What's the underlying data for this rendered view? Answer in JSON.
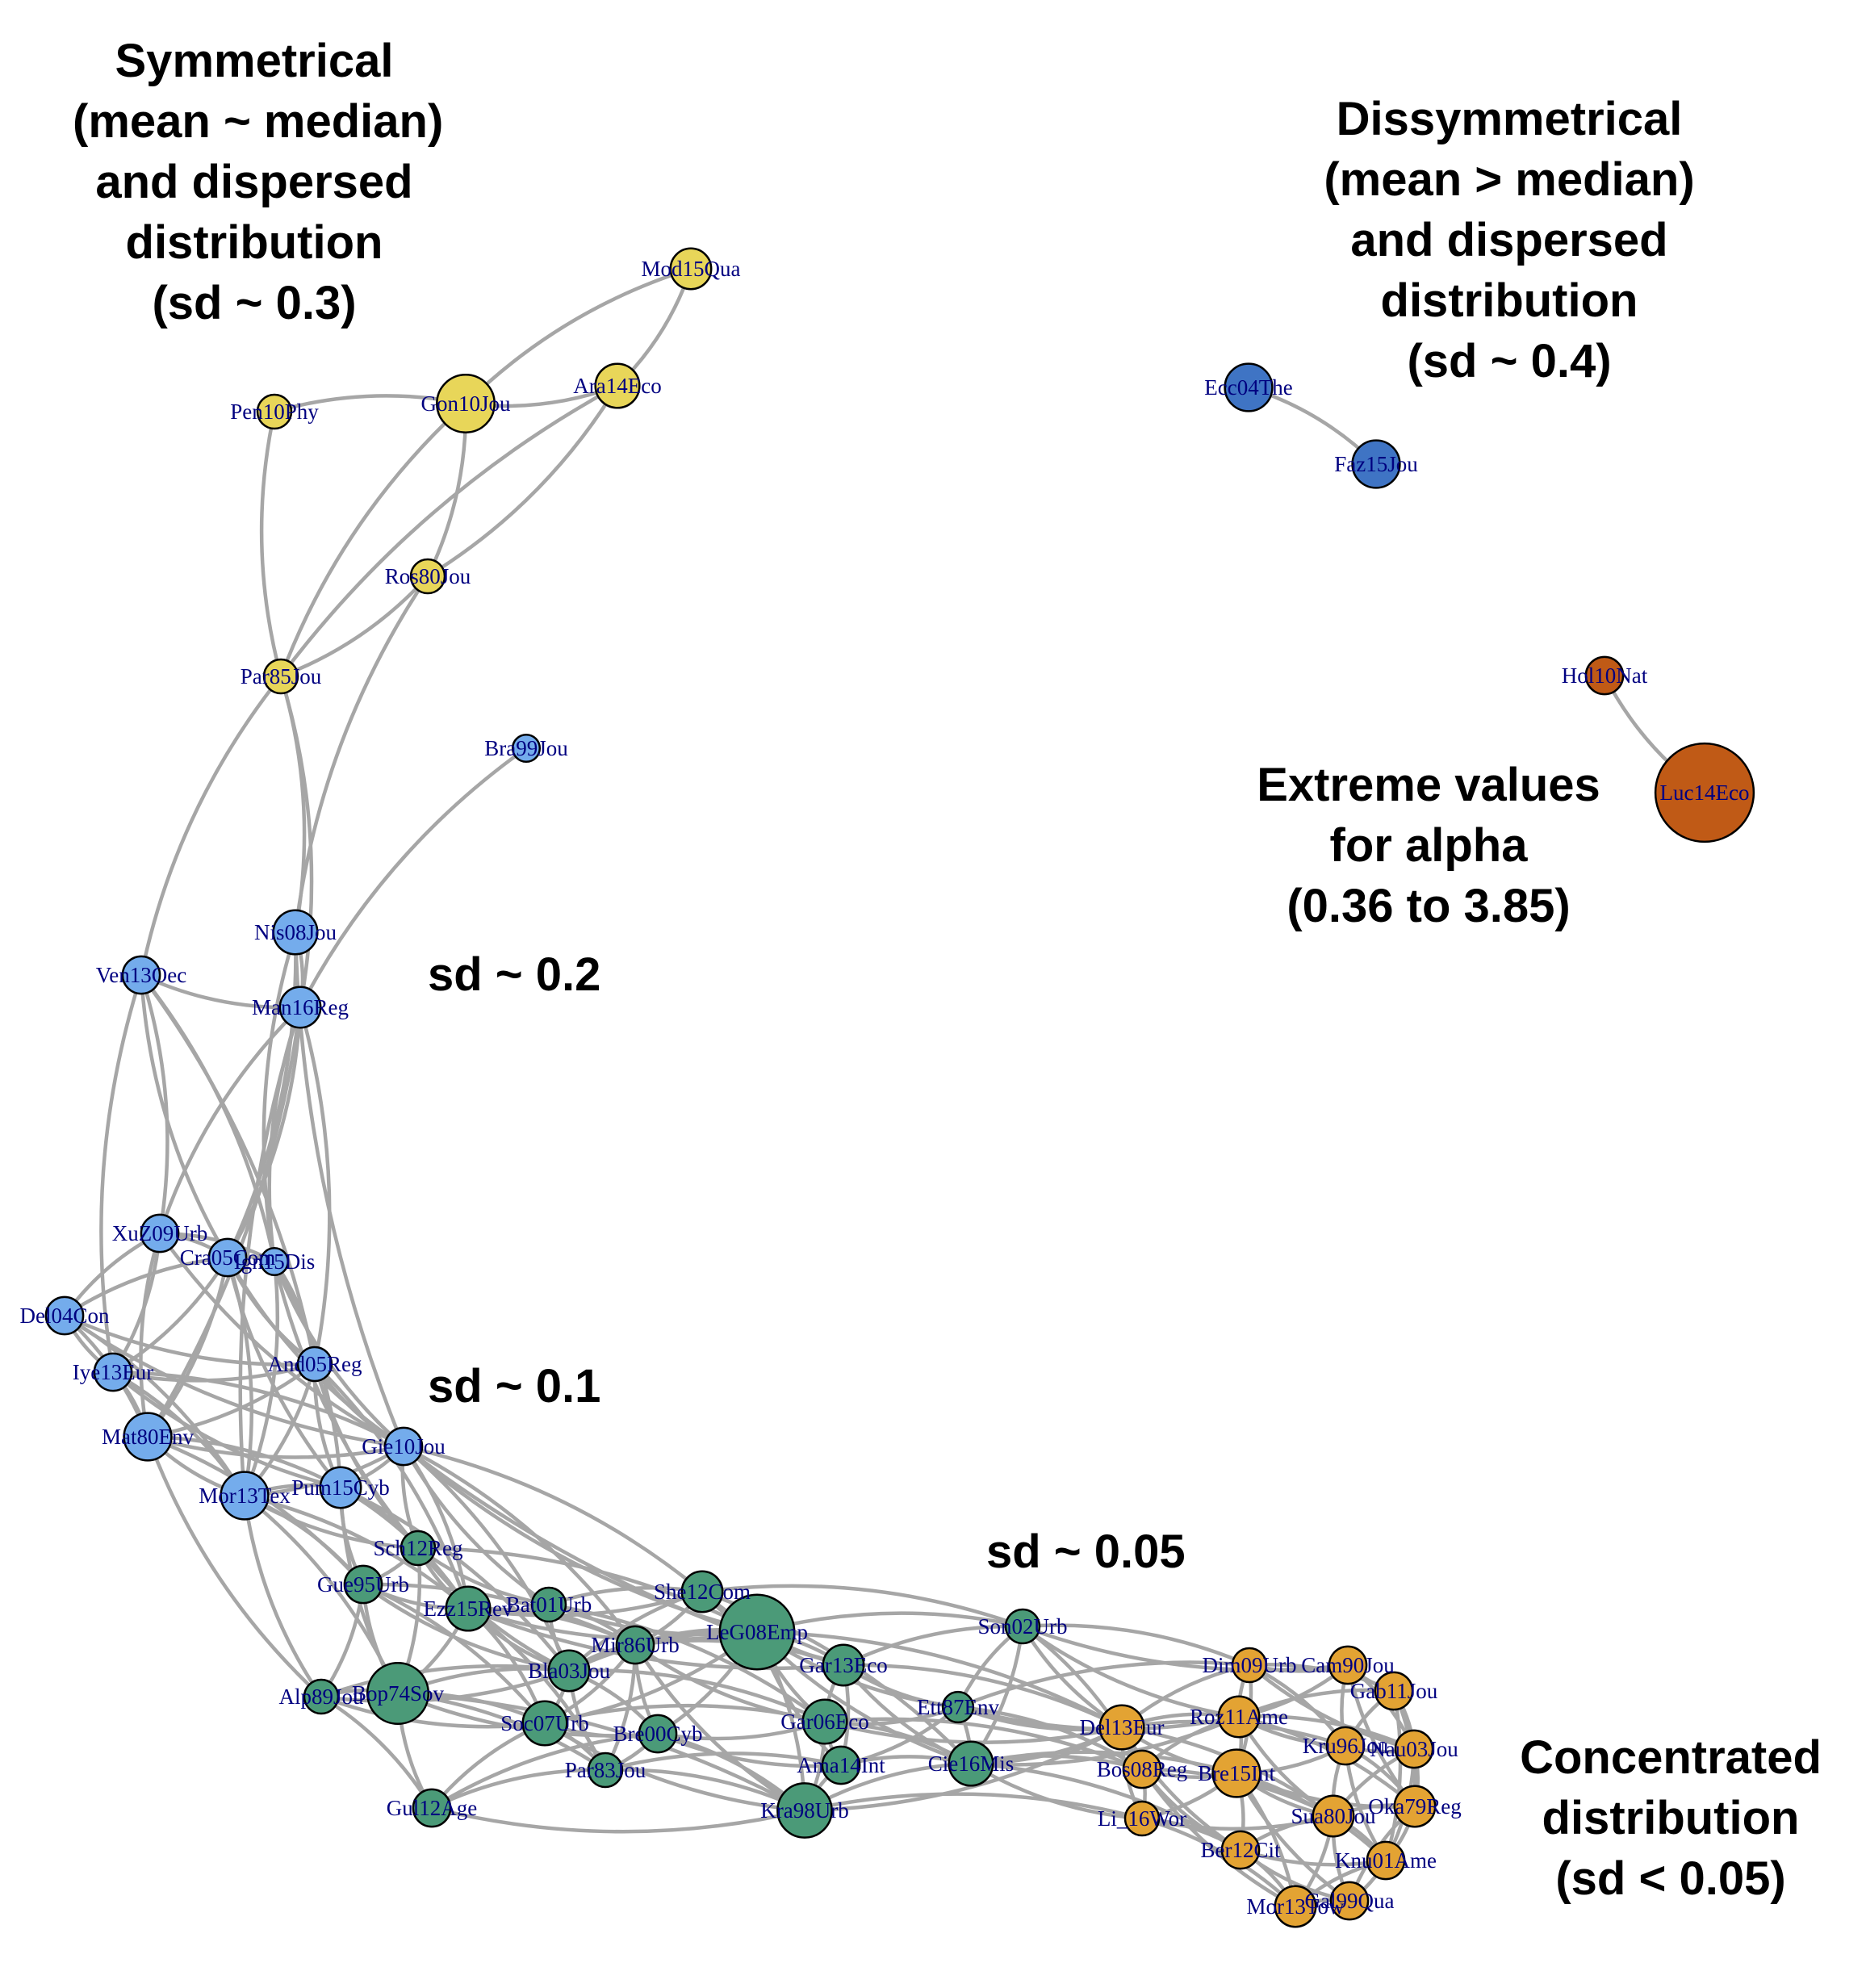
{
  "colors": {
    "edge": "#a6a6a6",
    "label": "#000080",
    "node_stroke": "#000000",
    "groups": {
      "yellow": "#e8d659",
      "blue_dark": "#3f74c4",
      "orange_dark": "#c05a16",
      "blue_light": "#74acec",
      "green": "#4b9a78",
      "orange": "#e3a333"
    }
  },
  "annotations": {
    "symmetrical": [
      "Symmetrical",
      "(mean ~ median)",
      "and dispersed",
      "distribution",
      "(sd ~ 0.3)"
    ],
    "dissymmetrical": [
      "Dissymmetrical",
      "(mean > median)",
      "and dispersed",
      "distribution",
      "(sd ~ 0.4)"
    ],
    "extreme": [
      "Extreme values",
      "for alpha",
      "(0.36 to 3.85)"
    ],
    "sd_02": "sd ~ 0.2",
    "sd_01": "sd ~ 0.1",
    "sd_005": "sd ~ 0.05",
    "concentrated": [
      "Concentrated",
      "distribution",
      "(sd < 0.05)"
    ]
  },
  "nodes": [
    {
      "id": "Mod15Qua",
      "group": "yellow",
      "size": 1.2
    },
    {
      "id": "Ara14Eco",
      "group": "yellow",
      "size": 1.3
    },
    {
      "id": "Gon10Jou",
      "group": "yellow",
      "size": 1.7
    },
    {
      "id": "Pen10Phy",
      "group": "yellow",
      "size": 1.0
    },
    {
      "id": "Ros80Jou",
      "group": "yellow",
      "size": 1.0
    },
    {
      "id": "Par85Jou",
      "group": "yellow",
      "size": 1.0
    },
    {
      "id": "Ecc04The",
      "group": "blue_dark",
      "size": 1.4
    },
    {
      "id": "Faz15Jou",
      "group": "blue_dark",
      "size": 1.4
    },
    {
      "id": "Hol10Nat",
      "group": "orange_dark",
      "size": 1.1
    },
    {
      "id": "Luc14Eco",
      "group": "orange_dark",
      "size": 2.9
    },
    {
      "id": "Bra99Jou",
      "group": "blue_light",
      "size": 0.8
    },
    {
      "id": "Nis08Jou",
      "group": "blue_light",
      "size": 1.3
    },
    {
      "id": "Man16Reg",
      "group": "blue_light",
      "size": 1.2
    },
    {
      "id": "Ven13Oec",
      "group": "blue_light",
      "size": 1.1
    },
    {
      "id": "XuZ09Urb",
      "group": "blue_light",
      "size": 1.1
    },
    {
      "id": "Cra05Com",
      "group": "blue_light",
      "size": 1.1
    },
    {
      "id": "Ign15Dis",
      "group": "blue_light",
      "size": 0.8
    },
    {
      "id": "Del04Con",
      "group": "blue_light",
      "size": 1.1
    },
    {
      "id": "Iye13Eur",
      "group": "blue_light",
      "size": 1.1
    },
    {
      "id": "And05Reg",
      "group": "blue_light",
      "size": 1.0
    },
    {
      "id": "Mat80Env",
      "group": "blue_light",
      "size": 1.4
    },
    {
      "id": "Gie10Jou",
      "group": "blue_light",
      "size": 1.1
    },
    {
      "id": "Mor13Tex",
      "group": "blue_light",
      "size": 1.4
    },
    {
      "id": "Pum15Cyb",
      "group": "blue_light",
      "size": 1.2
    },
    {
      "id": "Sch12Reg",
      "group": "green",
      "size": 1.0
    },
    {
      "id": "Gue95Urb",
      "group": "green",
      "size": 1.1
    },
    {
      "id": "Ezz15Rev",
      "group": "green",
      "size": 1.3
    },
    {
      "id": "Bat01Urb",
      "group": "green",
      "size": 1.0
    },
    {
      "id": "She12Com",
      "group": "green",
      "size": 1.2
    },
    {
      "id": "LeG08Emp",
      "group": "green",
      "size": 2.2
    },
    {
      "id": "Mir86Urb",
      "group": "green",
      "size": 1.1
    },
    {
      "id": "Bla03Jou",
      "group": "green",
      "size": 1.2
    },
    {
      "id": "Alp89Jou",
      "group": "green",
      "size": 1.0
    },
    {
      "id": "Bop74Sov",
      "group": "green",
      "size": 1.8
    },
    {
      "id": "Gar13Eco",
      "group": "green",
      "size": 1.2
    },
    {
      "id": "Son02Urb",
      "group": "green",
      "size": 1.0
    },
    {
      "id": "Soc07Urb",
      "group": "green",
      "size": 1.3
    },
    {
      "id": "Bre00Cyb",
      "group": "green",
      "size": 1.1
    },
    {
      "id": "Gar06Eco",
      "group": "green",
      "size": 1.3
    },
    {
      "id": "Ett87Env",
      "group": "green",
      "size": 0.9
    },
    {
      "id": "Ama14Int",
      "group": "green",
      "size": 1.1
    },
    {
      "id": "Cie16Mis",
      "group": "green",
      "size": 1.3
    },
    {
      "id": "Par83Jou",
      "group": "green",
      "size": 1.0
    },
    {
      "id": "Gul12Age",
      "group": "green",
      "size": 1.1
    },
    {
      "id": "Kra98Urb",
      "group": "green",
      "size": 1.6
    },
    {
      "id": "Dim09Urb",
      "group": "orange",
      "size": 1.0
    },
    {
      "id": "Cam90Jou",
      "group": "orange",
      "size": 1.1
    },
    {
      "id": "Gab11Jou",
      "group": "orange",
      "size": 1.1
    },
    {
      "id": "Del13Eur",
      "group": "orange",
      "size": 1.3
    },
    {
      "id": "Roz11Ame",
      "group": "orange",
      "size": 1.2
    },
    {
      "id": "Kru96Jou",
      "group": "orange",
      "size": 1.1
    },
    {
      "id": "Nau03Jou",
      "group": "orange",
      "size": 1.1
    },
    {
      "id": "Bos08Reg",
      "group": "orange",
      "size": 1.1
    },
    {
      "id": "Bre15Int",
      "group": "orange",
      "size": 1.4
    },
    {
      "id": "Oka79Reg",
      "group": "orange",
      "size": 1.2
    },
    {
      "id": "Li_16Wor",
      "group": "orange",
      "size": 1.0
    },
    {
      "id": "Sua80Jou",
      "group": "orange",
      "size": 1.2
    },
    {
      "id": "Ber12Cit",
      "group": "orange",
      "size": 1.1
    },
    {
      "id": "Knu01Ame",
      "group": "orange",
      "size": 1.1
    },
    {
      "id": "Mor13Tow",
      "group": "orange",
      "size": 1.2
    },
    {
      "id": "Gal99Qua",
      "group": "orange",
      "size": 1.1
    }
  ],
  "edges": [
    [
      "Mod15Qua",
      "Gon10Jou"
    ],
    [
      "Mod15Qua",
      "Ara14Eco"
    ],
    [
      "Gon10Jou",
      "Ara14Eco"
    ],
    [
      "Pen10Phy",
      "Gon10Jou"
    ],
    [
      "Pen10Phy",
      "Par85Jou"
    ],
    [
      "Gon10Jou",
      "Ros80Jou"
    ],
    [
      "Gon10Jou",
      "Par85Jou"
    ],
    [
      "Ara14Eco",
      "Ros80Jou"
    ],
    [
      "Ara14Eco",
      "Par85Jou"
    ],
    [
      "Ros80Jou",
      "Par85Jou"
    ],
    [
      "Ros80Jou",
      "Nis08Jou"
    ],
    [
      "Par85Jou",
      "Nis08Jou"
    ],
    [
      "Par85Jou",
      "Ven13Oec"
    ],
    [
      "Par85Jou",
      "Man16Reg"
    ],
    [
      "Bra99Jou",
      "Man16Reg"
    ],
    [
      "Ecc04The",
      "Faz15Jou"
    ],
    [
      "Hol10Nat",
      "Luc14Eco"
    ],
    [
      "Nis08Jou",
      "Man16Reg"
    ],
    [
      "Ven13Oec",
      "Man16Reg"
    ],
    [
      "Ven13Oec",
      "XuZ09Urb"
    ],
    [
      "Ven13Oec",
      "Cra05Com"
    ],
    [
      "Ven13Oec",
      "Ign15Dis"
    ],
    [
      "Ven13Oec",
      "Iye13Eur"
    ],
    [
      "Ven13Oec",
      "And05Reg"
    ],
    [
      "Man16Reg",
      "XuZ09Urb"
    ],
    [
      "Man16Reg",
      "Cra05Com"
    ],
    [
      "Man16Reg",
      "Ign15Dis"
    ],
    [
      "Man16Reg",
      "Mat80Env"
    ],
    [
      "Man16Reg",
      "Mor13Tex"
    ],
    [
      "Man16Reg",
      "And05Reg"
    ],
    [
      "Nis08Jou",
      "Ign15Dis"
    ],
    [
      "Nis08Jou",
      "Cra05Com"
    ],
    [
      "Nis08Jou",
      "Gie10Jou"
    ],
    [
      "XuZ09Urb",
      "Cra05Com"
    ],
    [
      "XuZ09Urb",
      "Del04Con"
    ],
    [
      "XuZ09Urb",
      "Iye13Eur"
    ],
    [
      "XuZ09Urb",
      "Mat80Env"
    ],
    [
      "XuZ09Urb",
      "Ign15Dis"
    ],
    [
      "XuZ09Urb",
      "Gie10Jou"
    ],
    [
      "Cra05Com",
      "Ign15Dis"
    ],
    [
      "Cra05Com",
      "Del04Con"
    ],
    [
      "Cra05Com",
      "Iye13Eur"
    ],
    [
      "Cra05Com",
      "And05Reg"
    ],
    [
      "Cra05Com",
      "Mat80Env"
    ],
    [
      "Cra05Com",
      "Gie10Jou"
    ],
    [
      "Cra05Com",
      "Mor13Tex"
    ],
    [
      "Cra05Com",
      "Pum15Cyb"
    ],
    [
      "Ign15Dis",
      "And05Reg"
    ],
    [
      "Ign15Dis",
      "Gie10Jou"
    ],
    [
      "Ign15Dis",
      "Pum15Cyb"
    ],
    [
      "Ign15Dis",
      "Sch12Reg"
    ],
    [
      "Ign15Dis",
      "Mor13Tex"
    ],
    [
      "Del04Con",
      "Iye13Eur"
    ],
    [
      "Del04Con",
      "Mat80Env"
    ],
    [
      "Del04Con",
      "And05Reg"
    ],
    [
      "Del04Con",
      "Mor13Tex"
    ],
    [
      "Del04Con",
      "Gie10Jou"
    ],
    [
      "Iye13Eur",
      "Mat80Env"
    ],
    [
      "Iye13Eur",
      "And05Reg"
    ],
    [
      "Iye13Eur",
      "Mor13Tex"
    ],
    [
      "Iye13Eur",
      "Pum15Cyb"
    ],
    [
      "Iye13Eur",
      "Gie10Jou"
    ],
    [
      "And05Reg",
      "Gie10Jou"
    ],
    [
      "And05Reg",
      "Mat80Env"
    ],
    [
      "And05Reg",
      "Pum15Cyb"
    ],
    [
      "And05Reg",
      "Mor13Tex"
    ],
    [
      "And05Reg",
      "Sch12Reg"
    ],
    [
      "And05Reg",
      "Ezz15Rev"
    ],
    [
      "Mat80Env",
      "Mor13Tex"
    ],
    [
      "Mat80Env",
      "Pum15Cyb"
    ],
    [
      "Mat80Env",
      "Gie10Jou"
    ],
    [
      "Mat80Env",
      "Gue95Urb"
    ],
    [
      "Mat80Env",
      "Alp89Jou"
    ],
    [
      "Mor13Tex",
      "Pum15Cyb"
    ],
    [
      "Mor13Tex",
      "Gie10Jou"
    ],
    [
      "Mor13Tex",
      "Gue95Urb"
    ],
    [
      "Mor13Tex",
      "Alp89Jou"
    ],
    [
      "Mor13Tex",
      "Bop74Sov"
    ],
    [
      "Mor13Tex",
      "Sch12Reg"
    ],
    [
      "Mor13Tex",
      "Ezz15Rev"
    ],
    [
      "Pum15Cyb",
      "Gie10Jou"
    ],
    [
      "Pum15Cyb",
      "Sch12Reg"
    ],
    [
      "Pum15Cyb",
      "Gue95Urb"
    ],
    [
      "Pum15Cyb",
      "Ezz15Rev"
    ],
    [
      "Pum15Cyb",
      "Bop74Sov"
    ],
    [
      "Pum15Cyb",
      "Bla03Jou"
    ],
    [
      "Gie10Jou",
      "Sch12Reg"
    ],
    [
      "Gie10Jou",
      "Ezz15Rev"
    ],
    [
      "Gie10Jou",
      "Bat01Urb"
    ],
    [
      "Gie10Jou",
      "She12Com"
    ],
    [
      "Gie10Jou",
      "LeG08Emp"
    ],
    [
      "Gie10Jou",
      "Mir86Urb"
    ],
    [
      "Gie10Jou",
      "Gar13Eco"
    ],
    [
      "Gie10Jou",
      "Bla03Jou"
    ],
    [
      "Sch12Reg",
      "Ezz15Rev"
    ],
    [
      "Sch12Reg",
      "Gue95Urb"
    ],
    [
      "Sch12Reg",
      "Bat01Urb"
    ],
    [
      "Sch12Reg",
      "LeG08Emp"
    ],
    [
      "Sch12Reg",
      "Bla03Jou"
    ],
    [
      "Sch12Reg",
      "Bop74Sov"
    ],
    [
      "Gue95Urb",
      "Ezz15Rev"
    ],
    [
      "Gue95Urb",
      "Alp89Jou"
    ],
    [
      "Gue95Urb",
      "Bop74Sov"
    ],
    [
      "Gue95Urb",
      "Soc07Urb"
    ],
    [
      "Gue95Urb",
      "Bla03Jou"
    ],
    [
      "Gue95Urb",
      "Mir86Urb"
    ],
    [
      "Ezz15Rev",
      "Bat01Urb"
    ],
    [
      "Ezz15Rev",
      "Mir86Urb"
    ],
    [
      "Ezz15Rev",
      "Bla03Jou"
    ],
    [
      "Ezz15Rev",
      "Bop74Sov"
    ],
    [
      "Ezz15Rev",
      "LeG08Emp"
    ],
    [
      "Ezz15Rev",
      "Soc07Urb"
    ],
    [
      "Ezz15Rev",
      "She12Com"
    ],
    [
      "Ezz15Rev",
      "Par83Jou"
    ],
    [
      "Ezz15Rev",
      "Gar13Eco"
    ],
    [
      "Bat01Urb",
      "She12Com"
    ],
    [
      "Bat01Urb",
      "LeG08Emp"
    ],
    [
      "Bat01Urb",
      "Mir86Urb"
    ],
    [
      "Bat01Urb",
      "Bla03Jou"
    ],
    [
      "Bat01Urb",
      "Gar06Eco"
    ],
    [
      "She12Com",
      "LeG08Emp"
    ],
    [
      "She12Com",
      "Mir86Urb"
    ],
    [
      "She12Com",
      "Gar13Eco"
    ],
    [
      "She12Com",
      "Son02Urb"
    ],
    [
      "She12Com",
      "Bla03Jou"
    ],
    [
      "She12Com",
      "Cie16Mis"
    ],
    [
      "LeG08Emp",
      "Mir86Urb"
    ],
    [
      "LeG08Emp",
      "Gar13Eco"
    ],
    [
      "LeG08Emp",
      "Gar06Eco"
    ],
    [
      "LeG08Emp",
      "Son02Urb"
    ],
    [
      "LeG08Emp",
      "Bla03Jou"
    ],
    [
      "LeG08Emp",
      "Bre00Cyb"
    ],
    [
      "LeG08Emp",
      "Ama14Int"
    ],
    [
      "LeG08Emp",
      "Kra98Urb"
    ],
    [
      "LeG08Emp",
      "Ett87Env"
    ],
    [
      "LeG08Emp",
      "Soc07Urb"
    ],
    [
      "LeG08Emp",
      "Cie16Mis"
    ],
    [
      "LeG08Emp",
      "Del13Eur"
    ],
    [
      "Mir86Urb",
      "Bla03Jou"
    ],
    [
      "Mir86Urb",
      "Soc07Urb"
    ],
    [
      "Mir86Urb",
      "Bre00Cyb"
    ],
    [
      "Mir86Urb",
      "Gar13Eco"
    ],
    [
      "Mir86Urb",
      "Gar06Eco"
    ],
    [
      "Mir86Urb",
      "Par83Jou"
    ],
    [
      "Mir86Urb",
      "Kra98Urb"
    ],
    [
      "Bla03Jou",
      "Soc07Urb"
    ],
    [
      "Bla03Jou",
      "Bop74Sov"
    ],
    [
      "Bla03Jou",
      "Bre00Cyb"
    ],
    [
      "Bla03Jou",
      "Par83Jou"
    ],
    [
      "Bla03Jou",
      "Gar06Eco"
    ],
    [
      "Bla03Jou",
      "Alp89Jou"
    ],
    [
      "Alp89Jou",
      "Bop74Sov"
    ],
    [
      "Alp89Jou",
      "Soc07Urb"
    ],
    [
      "Alp89Jou",
      "Gul12Age"
    ],
    [
      "Alp89Jou",
      "Bla03Jou"
    ],
    [
      "Bop74Sov",
      "Soc07Urb"
    ],
    [
      "Bop74Sov",
      "Gul12Age"
    ],
    [
      "Bop74Sov",
      "Par83Jou"
    ],
    [
      "Bop74Sov",
      "Bre00Cyb"
    ],
    [
      "Bop74Sov",
      "Kra98Urb"
    ],
    [
      "Soc07Urb",
      "Bre00Cyb"
    ],
    [
      "Soc07Urb",
      "Par83Jou"
    ],
    [
      "Soc07Urb",
      "Gul12Age"
    ],
    [
      "Soc07Urb",
      "Gar06Eco"
    ],
    [
      "Soc07Urb",
      "Kra98Urb"
    ],
    [
      "Bre00Cyb",
      "Par83Jou"
    ],
    [
      "Bre00Cyb",
      "Gar06Eco"
    ],
    [
      "Bre00Cyb",
      "Kra98Urb"
    ],
    [
      "Bre00Cyb",
      "Ama14Int"
    ],
    [
      "Par83Jou",
      "Kra98Urb"
    ],
    [
      "Par83Jou",
      "Gul12Age"
    ],
    [
      "Par83Jou",
      "Ama14Int"
    ],
    [
      "Gul12Age",
      "Kra98Urb"
    ],
    [
      "Gul12Age",
      "Bre00Cyb"
    ],
    [
      "Gar13Eco",
      "Gar06Eco"
    ],
    [
      "Gar13Eco",
      "Son02Urb"
    ],
    [
      "Gar13Eco",
      "Ett87Env"
    ],
    [
      "Gar13Eco",
      "Ama14Int"
    ],
    [
      "Gar13Eco",
      "Cie16Mis"
    ],
    [
      "Gar13Eco",
      "Del13Eur"
    ],
    [
      "Gar06Eco",
      "Ama14Int"
    ],
    [
      "Gar06Eco",
      "Kra98Urb"
    ],
    [
      "Gar06Eco",
      "Ett87Env"
    ],
    [
      "Gar06Eco",
      "Cie16Mis"
    ],
    [
      "Gar06Eco",
      "Del13Eur"
    ],
    [
      "Gar06Eco",
      "Bos08Reg"
    ],
    [
      "Ama14Int",
      "Kra98Urb"
    ],
    [
      "Ama14Int",
      "Cie16Mis"
    ],
    [
      "Ama14Int",
      "Ett87Env"
    ],
    [
      "Kra98Urb",
      "Cie16Mis"
    ],
    [
      "Kra98Urb",
      "Del13Eur"
    ],
    [
      "Kra98Urb",
      "Li_16Wor"
    ],
    [
      "Son02Urb",
      "Ett87Env"
    ],
    [
      "Son02Urb",
      "Cie16Mis"
    ],
    [
      "Son02Urb",
      "Del13Eur"
    ],
    [
      "Son02Urb",
      "Dim09Urb"
    ],
    [
      "Son02Urb",
      "Roz11Ame"
    ],
    [
      "Son02Urb",
      "Bos08Reg"
    ],
    [
      "Son02Urb",
      "Cam90Jou"
    ],
    [
      "Ett87Env",
      "Cie16Mis"
    ],
    [
      "Ett87Env",
      "Del13Eur"
    ],
    [
      "Ett87Env",
      "Bos08Reg"
    ],
    [
      "Ett87Env",
      "Roz11Ame"
    ],
    [
      "Ett87Env",
      "Dim09Urb"
    ],
    [
      "Cie16Mis",
      "Del13Eur"
    ],
    [
      "Cie16Mis",
      "Bos08Reg"
    ],
    [
      "Cie16Mis",
      "Li_16Wor"
    ],
    [
      "Cie16Mis",
      "Bre15Int"
    ],
    [
      "Cie16Mis",
      "Roz11Ame"
    ],
    [
      "Cie16Mis",
      "Ber12Cit"
    ],
    [
      "Del13Eur",
      "Bos08Reg"
    ],
    [
      "Del13Eur",
      "Roz11Ame"
    ],
    [
      "Del13Eur",
      "Bre15Int"
    ],
    [
      "Del13Eur",
      "Dim09Urb"
    ],
    [
      "Del13Eur",
      "Li_16Wor"
    ],
    [
      "Del13Eur",
      "Kru96Jou"
    ],
    [
      "Del13Eur",
      "Ber12Cit"
    ],
    [
      "Del13Eur",
      "Sua80Jou"
    ],
    [
      "Dim09Urb",
      "Cam90Jou"
    ],
    [
      "Dim09Urb",
      "Gab11Jou"
    ],
    [
      "Dim09Urb",
      "Roz11Ame"
    ],
    [
      "Dim09Urb",
      "Kru96Jou"
    ],
    [
      "Dim09Urb",
      "Nau03Jou"
    ],
    [
      "Dim09Urb",
      "Bre15Int"
    ],
    [
      "Cam90Jou",
      "Gab11Jou"
    ],
    [
      "Cam90Jou",
      "Roz11Ame"
    ],
    [
      "Cam90Jou",
      "Kru96Jou"
    ],
    [
      "Cam90Jou",
      "Nau03Jou"
    ],
    [
      "Cam90Jou",
      "Oka79Reg"
    ],
    [
      "Gab11Jou",
      "Nau03Jou"
    ],
    [
      "Gab11Jou",
      "Kru96Jou"
    ],
    [
      "Gab11Jou",
      "Oka79Reg"
    ],
    [
      "Gab11Jou",
      "Roz11Ame"
    ],
    [
      "Gab11Jou",
      "Knu01Ame"
    ],
    [
      "Roz11Ame",
      "Kru96Jou"
    ],
    [
      "Roz11Ame",
      "Bre15Int"
    ],
    [
      "Roz11Ame",
      "Bos08Reg"
    ],
    [
      "Roz11Ame",
      "Nau03Jou"
    ],
    [
      "Roz11Ame",
      "Sua80Jou"
    ],
    [
      "Roz11Ame",
      "Oka79Reg"
    ],
    [
      "Kru96Jou",
      "Nau03Jou"
    ],
    [
      "Kru96Jou",
      "Bre15Int"
    ],
    [
      "Kru96Jou",
      "Sua80Jou"
    ],
    [
      "Kru96Jou",
      "Oka79Reg"
    ],
    [
      "Kru96Jou",
      "Knu01Ame"
    ],
    [
      "Nau03Jou",
      "Oka79Reg"
    ],
    [
      "Nau03Jou",
      "Sua80Jou"
    ],
    [
      "Nau03Jou",
      "Knu01Ame"
    ],
    [
      "Bos08Reg",
      "Bre15Int"
    ],
    [
      "Bos08Reg",
      "Li_16Wor"
    ],
    [
      "Bos08Reg",
      "Ber12Cit"
    ],
    [
      "Bos08Reg",
      "Sua80Jou"
    ],
    [
      "Bos08Reg",
      "Mor13Tow"
    ],
    [
      "Bre15Int",
      "Li_16Wor"
    ],
    [
      "Bre15Int",
      "Sua80Jou"
    ],
    [
      "Bre15Int",
      "Ber12Cit"
    ],
    [
      "Bre15Int",
      "Oka79Reg"
    ],
    [
      "Bre15Int",
      "Knu01Ame"
    ],
    [
      "Bre15Int",
      "Gal99Qua"
    ],
    [
      "Bre15Int",
      "Mor13Tow"
    ],
    [
      "Oka79Reg",
      "Sua80Jou"
    ],
    [
      "Oka79Reg",
      "Knu01Ame"
    ],
    [
      "Oka79Reg",
      "Gal99Qua"
    ],
    [
      "Li_16Wor",
      "Ber12Cit"
    ],
    [
      "Li_16Wor",
      "Sua80Jou"
    ],
    [
      "Li_16Wor",
      "Mor13Tow"
    ],
    [
      "Sua80Jou",
      "Ber12Cit"
    ],
    [
      "Sua80Jou",
      "Knu01Ame"
    ],
    [
      "Sua80Jou",
      "Gal99Qua"
    ],
    [
      "Sua80Jou",
      "Mor13Tow"
    ],
    [
      "Ber12Cit",
      "Knu01Ame"
    ],
    [
      "Ber12Cit",
      "Mor13Tow"
    ],
    [
      "Ber12Cit",
      "Gal99Qua"
    ],
    [
      "Knu01Ame",
      "Gal99Qua"
    ],
    [
      "Knu01Ame",
      "Mor13Tow"
    ],
    [
      "Mor13Tow",
      "Gal99Qua"
    ]
  ]
}
